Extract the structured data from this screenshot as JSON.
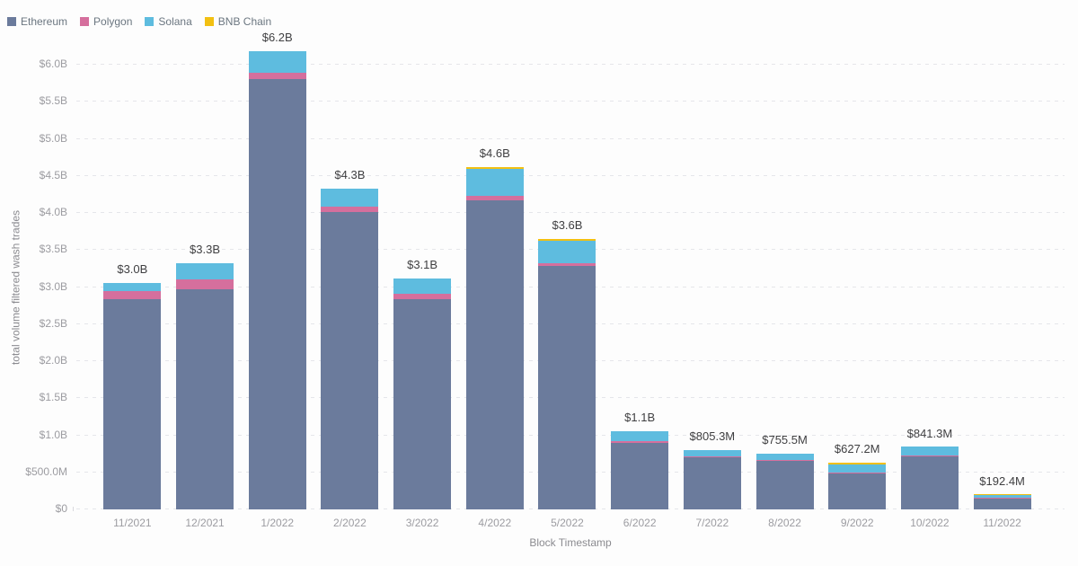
{
  "chart_data": {
    "type": "bar",
    "stacked": true,
    "title": "",
    "xlabel": "Block Timestamp",
    "ylabel": "total volume filtered wash trades",
    "unit": "USD millions",
    "ylim": [
      0,
      6000
    ],
    "grid": "horizontal-dashed",
    "legend_position": "top-left",
    "categories": [
      "11/2021",
      "12/2021",
      "1/2022",
      "2/2022",
      "3/2022",
      "4/2022",
      "5/2022",
      "6/2022",
      "7/2022",
      "8/2022",
      "9/2022",
      "10/2022",
      "11/2022"
    ],
    "series": [
      {
        "name": "Ethereum",
        "color": "#6b7b9c",
        "values": [
          2840,
          2970,
          5810,
          4010,
          2840,
          4165,
          3290,
          900,
          705,
          655,
          480,
          715,
          140
        ]
      },
      {
        "name": "Polygon",
        "color": "#d56f9d",
        "values": [
          100,
          130,
          85,
          80,
          70,
          60,
          35,
          20,
          15,
          15,
          10,
          6,
          4
        ]
      },
      {
        "name": "Solana",
        "color": "#5ebcdf",
        "values": [
          110,
          220,
          290,
          240,
          200,
          370,
          300,
          130,
          85,
          85,
          120,
          120,
          36
        ]
      },
      {
        "name": "BNB Chain",
        "color": "#f2c012",
        "values": [
          0,
          0,
          0,
          0,
          0,
          25,
          25,
          0,
          0,
          0,
          17,
          0,
          12
        ]
      }
    ],
    "total_labels": [
      "$3.0B",
      "$3.3B",
      "$6.2B",
      "$4.3B",
      "$3.1B",
      "$4.6B",
      "$3.6B",
      "$1.1B",
      "$805.3M",
      "$755.5M",
      "$627.2M",
      "$841.3M",
      "$192.4M"
    ],
    "y_ticks": [
      {
        "value": 0,
        "label": "$0"
      },
      {
        "value": 500,
        "label": "$500.0M"
      },
      {
        "value": 1000,
        "label": "$1.0B"
      },
      {
        "value": 1500,
        "label": "$1.5B"
      },
      {
        "value": 2000,
        "label": "$2.0B"
      },
      {
        "value": 2500,
        "label": "$2.5B"
      },
      {
        "value": 3000,
        "label": "$3.0B"
      },
      {
        "value": 3500,
        "label": "$3.5B"
      },
      {
        "value": 4000,
        "label": "$4.0B"
      },
      {
        "value": 4500,
        "label": "$4.5B"
      },
      {
        "value": 5000,
        "label": "$5.0B"
      },
      {
        "value": 5500,
        "label": "$5.5B"
      },
      {
        "value": 6000,
        "label": "$6.0B"
      }
    ]
  }
}
